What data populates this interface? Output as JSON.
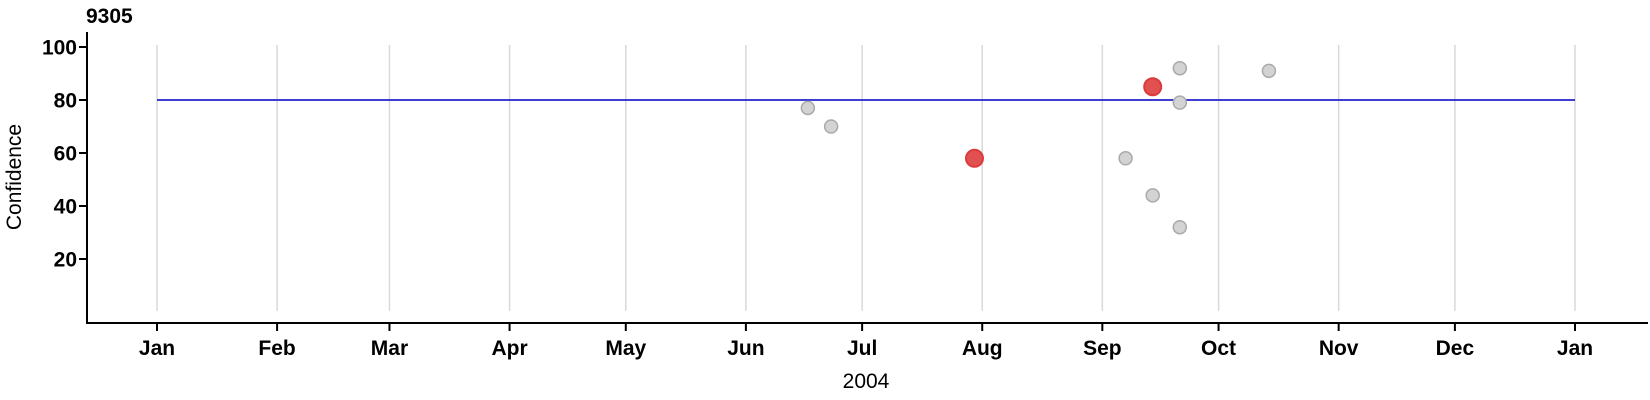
{
  "chart_data": {
    "type": "scatter",
    "title": "9305",
    "xlabel": "2004",
    "ylabel": "Confidence",
    "x_axis": {
      "tick_labels": [
        "Jan",
        "Feb",
        "Mar",
        "Apr",
        "May",
        "Jun",
        "Jul",
        "Aug",
        "Sep",
        "Oct",
        "Nov",
        "Dec",
        "Jan"
      ],
      "year": "2004",
      "grid": true
    },
    "y_axis": {
      "ticks": [
        20,
        40,
        60,
        80,
        100
      ],
      "ylim": [
        0,
        101
      ],
      "grid": false
    },
    "legend": "none",
    "reference_line": {
      "y": 80
    },
    "points": [
      {
        "date": "2004-06-16",
        "confidence": 77,
        "highlighted": false
      },
      {
        "date": "2004-06-22",
        "confidence": 70,
        "highlighted": false
      },
      {
        "date": "2004-07-29",
        "confidence": 58,
        "highlighted": true
      },
      {
        "date": "2004-09-06",
        "confidence": 58,
        "highlighted": false
      },
      {
        "date": "2004-09-13",
        "confidence": 85,
        "highlighted": true
      },
      {
        "date": "2004-09-13",
        "confidence": 44,
        "highlighted": false
      },
      {
        "date": "2004-09-20",
        "confidence": 92,
        "highlighted": false
      },
      {
        "date": "2004-09-20",
        "confidence": 79,
        "highlighted": false
      },
      {
        "date": "2004-09-20",
        "confidence": 32,
        "highlighted": false
      },
      {
        "date": "2004-10-13",
        "confidence": 91,
        "highlighted": false
      }
    ],
    "colors": {
      "reference_line": "#2222cc",
      "point_fill": "#d3d3d3",
      "point_stroke": "#aaaaaa",
      "highlight_fill": "#e25151",
      "highlight_stroke": "#da3b3b",
      "gridline": "#d9d9d9",
      "axis": "#000000",
      "text": "#000000"
    }
  }
}
